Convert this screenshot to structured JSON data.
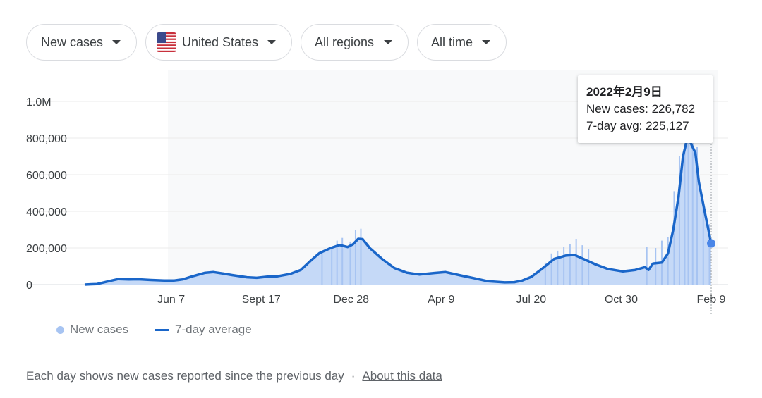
{
  "filters": {
    "metric": "New cases",
    "country": "United States",
    "region": "All regions",
    "time": "All time"
  },
  "tooltip": {
    "date": "2022年2月9日",
    "new_cases": "New cases: 226,782",
    "avg": "7-day avg: 225,127"
  },
  "legend": {
    "new_cases": "New cases",
    "avg": "7-day average"
  },
  "footer": {
    "text": "Each day shows new cases reported since the previous day",
    "sep": "·",
    "link": "About this data"
  },
  "colors": {
    "bars": "#a7c4f2",
    "area": "#c5d9f7",
    "line": "#1a66c9",
    "marker": "#4a86e8"
  },
  "chart_data": {
    "type": "line",
    "title": "",
    "xlabel": "",
    "ylabel": "",
    "ylim": [
      0,
      1000000
    ],
    "y_ticks": [
      0,
      200000,
      400000,
      600000,
      800000,
      1000000
    ],
    "y_tick_labels": [
      "0",
      "200,000",
      "400,000",
      "600,000",
      "800,000",
      "1.0M"
    ],
    "x_range": [
      "2020-03-01",
      "2022-02-09"
    ],
    "x_ticks": [
      {
        "date": "2020-06-07",
        "label": "Jun 7"
      },
      {
        "date": "2020-09-17",
        "label": "Sept 17"
      },
      {
        "date": "2020-12-28",
        "label": "Dec 28"
      },
      {
        "date": "2021-04-09",
        "label": "Apr 9"
      },
      {
        "date": "2021-07-20",
        "label": "Jul 20"
      },
      {
        "date": "2021-10-30",
        "label": "Oct 30"
      },
      {
        "date": "2022-02-09",
        "label": "Feb 9"
      }
    ],
    "grid": true,
    "legend_position": "bottom-left",
    "series": [
      {
        "name": "7-day average",
        "points": [
          [
            "2020-03-01",
            0
          ],
          [
            "2020-03-15",
            3000
          ],
          [
            "2020-03-28",
            18000
          ],
          [
            "2020-04-08",
            30000
          ],
          [
            "2020-04-20",
            28000
          ],
          [
            "2020-05-01",
            29000
          ],
          [
            "2020-05-15",
            25000
          ],
          [
            "2020-05-30",
            22000
          ],
          [
            "2020-06-10",
            22000
          ],
          [
            "2020-06-20",
            28000
          ],
          [
            "2020-07-01",
            45000
          ],
          [
            "2020-07-15",
            64000
          ],
          [
            "2020-07-25",
            68000
          ],
          [
            "2020-08-05",
            60000
          ],
          [
            "2020-08-15",
            52000
          ],
          [
            "2020-09-01",
            40000
          ],
          [
            "2020-09-12",
            37000
          ],
          [
            "2020-09-25",
            44000
          ],
          [
            "2020-10-05",
            45000
          ],
          [
            "2020-10-20",
            58000
          ],
          [
            "2020-11-01",
            80000
          ],
          [
            "2020-11-12",
            130000
          ],
          [
            "2020-11-22",
            172000
          ],
          [
            "2020-12-05",
            200000
          ],
          [
            "2020-12-15",
            216000
          ],
          [
            "2020-12-24",
            205000
          ],
          [
            "2020-12-30",
            220000
          ],
          [
            "2021-01-05",
            250000
          ],
          [
            "2021-01-10",
            248000
          ],
          [
            "2021-01-18",
            200000
          ],
          [
            "2021-02-01",
            140000
          ],
          [
            "2021-02-15",
            90000
          ],
          [
            "2021-03-01",
            65000
          ],
          [
            "2021-03-15",
            55000
          ],
          [
            "2021-04-01",
            63000
          ],
          [
            "2021-04-14",
            68000
          ],
          [
            "2021-05-01",
            50000
          ],
          [
            "2021-05-15",
            36000
          ],
          [
            "2021-06-01",
            18000
          ],
          [
            "2021-06-20",
            12000
          ],
          [
            "2021-07-01",
            13000
          ],
          [
            "2021-07-10",
            22000
          ],
          [
            "2021-07-20",
            42000
          ],
          [
            "2021-08-01",
            85000
          ],
          [
            "2021-08-15",
            140000
          ],
          [
            "2021-08-28",
            158000
          ],
          [
            "2021-09-07",
            162000
          ],
          [
            "2021-09-15",
            145000
          ],
          [
            "2021-10-01",
            110000
          ],
          [
            "2021-10-15",
            85000
          ],
          [
            "2021-11-01",
            72000
          ],
          [
            "2021-11-15",
            80000
          ],
          [
            "2021-11-26",
            95000
          ],
          [
            "2021-11-30",
            80000
          ],
          [
            "2021-12-05",
            115000
          ],
          [
            "2021-12-15",
            120000
          ],
          [
            "2021-12-22",
            170000
          ],
          [
            "2021-12-28",
            300000
          ],
          [
            "2022-01-03",
            480000
          ],
          [
            "2022-01-08",
            700000
          ],
          [
            "2022-01-12",
            780000
          ],
          [
            "2022-01-15",
            795000
          ],
          [
            "2022-01-18",
            760000
          ],
          [
            "2022-01-22",
            720000
          ],
          [
            "2022-01-26",
            560000
          ],
          [
            "2022-02-02",
            390000
          ],
          [
            "2022-02-09",
            225127
          ]
        ]
      },
      {
        "name": "New cases",
        "spikes": [
          [
            "2020-11-25",
            175000
          ],
          [
            "2020-12-06",
            198000
          ],
          [
            "2020-12-12",
            240000
          ],
          [
            "2020-12-18",
            255000
          ],
          [
            "2020-12-27",
            235000
          ],
          [
            "2021-01-02",
            298000
          ],
          [
            "2021-01-08",
            305000
          ],
          [
            "2021-08-05",
            120000
          ],
          [
            "2021-08-12",
            170000
          ],
          [
            "2021-08-19",
            185000
          ],
          [
            "2021-08-26",
            205000
          ],
          [
            "2021-09-02",
            220000
          ],
          [
            "2021-09-09",
            250000
          ],
          [
            "2021-09-16",
            215000
          ],
          [
            "2021-09-23",
            195000
          ],
          [
            "2021-11-28",
            205000
          ],
          [
            "2021-12-08",
            200000
          ],
          [
            "2021-12-15",
            240000
          ],
          [
            "2021-12-22",
            260000
          ],
          [
            "2021-12-29",
            510000
          ],
          [
            "2022-01-04",
            700000
          ],
          [
            "2022-01-10",
            1040000
          ],
          [
            "2022-01-14",
            860000
          ],
          [
            "2022-01-19",
            820000
          ],
          [
            "2022-01-24",
            750000
          ],
          [
            "2022-01-31",
            420000
          ],
          [
            "2022-02-07",
            330000
          ]
        ]
      }
    ],
    "highlight": {
      "date": "2022-02-09",
      "value": 225127
    }
  }
}
